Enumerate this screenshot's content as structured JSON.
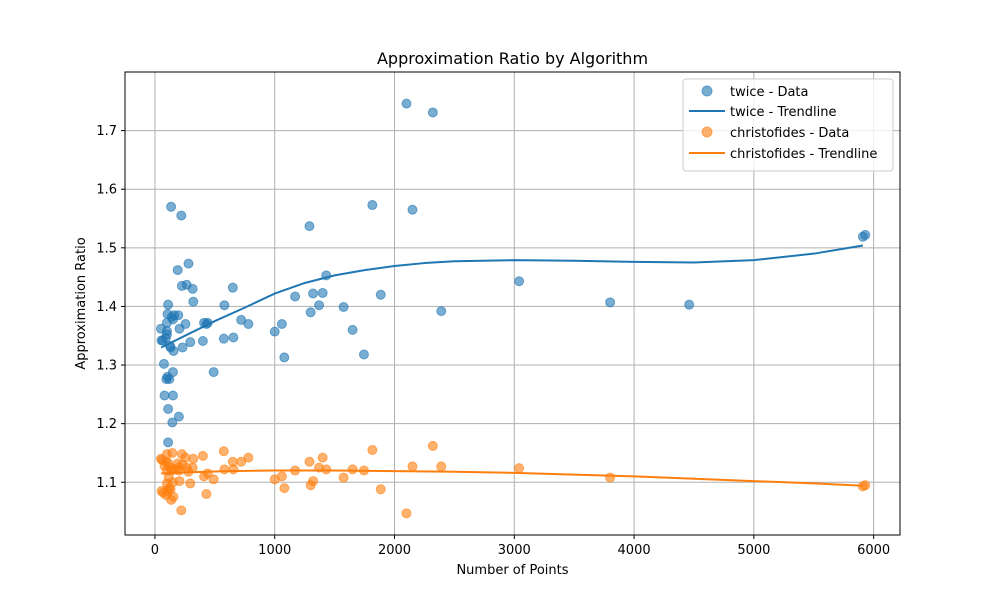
{
  "chart_data": {
    "type": "scatter",
    "title": "Approximation Ratio by Algorithm",
    "xlabel": "Number of Points",
    "ylabel": "Approximation Ratio",
    "xlim": [
      -250,
      6220
    ],
    "ylim": [
      1.01,
      1.8
    ],
    "xticks": [
      0,
      1000,
      2000,
      3000,
      4000,
      5000,
      6000
    ],
    "yticks": [
      1.1,
      1.2,
      1.3,
      1.4,
      1.5,
      1.6,
      1.7
    ],
    "grid": true,
    "legend_position": "top-right",
    "series": [
      {
        "name": "twice - Data",
        "kind": "scatter",
        "color": "#1f77b4",
        "points": [
          [
            50,
            1.362
          ],
          [
            55,
            1.342
          ],
          [
            65,
            1.342
          ],
          [
            75,
            1.302
          ],
          [
            80,
            1.248
          ],
          [
            90,
            1.346
          ],
          [
            95,
            1.276
          ],
          [
            100,
            1.372
          ],
          [
            100,
            1.358
          ],
          [
            100,
            1.352
          ],
          [
            105,
            1.28
          ],
          [
            105,
            1.387
          ],
          [
            110,
            1.403
          ],
          [
            110,
            1.225
          ],
          [
            110,
            1.168
          ],
          [
            120,
            1.276
          ],
          [
            125,
            1.333
          ],
          [
            130,
            1.33
          ],
          [
            135,
            1.57
          ],
          [
            140,
            1.382
          ],
          [
            145,
            1.202
          ],
          [
            150,
            1.378
          ],
          [
            150,
            1.288
          ],
          [
            150,
            1.248
          ],
          [
            155,
            1.324
          ],
          [
            160,
            1.385
          ],
          [
            190,
            1.462
          ],
          [
            195,
            1.385
          ],
          [
            200,
            1.212
          ],
          [
            205,
            1.362
          ],
          [
            220,
            1.555
          ],
          [
            225,
            1.435
          ],
          [
            230,
            1.33
          ],
          [
            255,
            1.37
          ],
          [
            265,
            1.437
          ],
          [
            280,
            1.473
          ],
          [
            295,
            1.339
          ],
          [
            315,
            1.43
          ],
          [
            320,
            1.408
          ],
          [
            400,
            1.341
          ],
          [
            410,
            1.372
          ],
          [
            430,
            1.37
          ],
          [
            440,
            1.372
          ],
          [
            490,
            1.288
          ],
          [
            575,
            1.345
          ],
          [
            580,
            1.402
          ],
          [
            650,
            1.432
          ],
          [
            655,
            1.347
          ],
          [
            720,
            1.377
          ],
          [
            780,
            1.37
          ],
          [
            1000,
            1.357
          ],
          [
            1060,
            1.37
          ],
          [
            1080,
            1.313
          ],
          [
            1170,
            1.417
          ],
          [
            1290,
            1.537
          ],
          [
            1300,
            1.39
          ],
          [
            1320,
            1.422
          ],
          [
            1370,
            1.402
          ],
          [
            1400,
            1.423
          ],
          [
            1430,
            1.453
          ],
          [
            1575,
            1.399
          ],
          [
            1650,
            1.36
          ],
          [
            1745,
            1.318
          ],
          [
            1815,
            1.573
          ],
          [
            1885,
            1.42
          ],
          [
            2100,
            1.746
          ],
          [
            2150,
            1.565
          ],
          [
            2320,
            1.731
          ],
          [
            2390,
            1.392
          ],
          [
            3040,
            1.443
          ],
          [
            3800,
            1.407
          ],
          [
            4460,
            1.403
          ],
          [
            5910,
            1.519
          ],
          [
            5930,
            1.522
          ]
        ]
      },
      {
        "name": "twice - Trendline",
        "kind": "line",
        "color": "#1f77b4",
        "points": [
          [
            52,
            1.33
          ],
          [
            300,
            1.355
          ],
          [
            500,
            1.375
          ],
          [
            750,
            1.398
          ],
          [
            1000,
            1.422
          ],
          [
            1250,
            1.44
          ],
          [
            1500,
            1.453
          ],
          [
            1750,
            1.462
          ],
          [
            2000,
            1.469
          ],
          [
            2250,
            1.474
          ],
          [
            2500,
            1.477
          ],
          [
            3000,
            1.479
          ],
          [
            3500,
            1.478
          ],
          [
            4000,
            1.476
          ],
          [
            4500,
            1.475
          ],
          [
            5000,
            1.479
          ],
          [
            5500,
            1.49
          ],
          [
            5910,
            1.504
          ]
        ]
      },
      {
        "name": "christofides - Data",
        "kind": "scatter",
        "color": "#ff7f0e",
        "points": [
          [
            50,
            1.14
          ],
          [
            55,
            1.085
          ],
          [
            60,
            1.138
          ],
          [
            70,
            1.082
          ],
          [
            80,
            1.128
          ],
          [
            90,
            1.135
          ],
          [
            95,
            1.078
          ],
          [
            100,
            1.12
          ],
          [
            100,
            1.098
          ],
          [
            100,
            1.148
          ],
          [
            105,
            1.085
          ],
          [
            110,
            1.133
          ],
          [
            115,
            1.108
          ],
          [
            120,
            1.09
          ],
          [
            125,
            1.125
          ],
          [
            130,
            1.088
          ],
          [
            135,
            1.07
          ],
          [
            140,
            1.12
          ],
          [
            145,
            1.15
          ],
          [
            150,
            1.1
          ],
          [
            155,
            1.075
          ],
          [
            160,
            1.122
          ],
          [
            190,
            1.132
          ],
          [
            195,
            1.125
          ],
          [
            200,
            1.12
          ],
          [
            205,
            1.102
          ],
          [
            220,
            1.052
          ],
          [
            225,
            1.148
          ],
          [
            230,
            1.13
          ],
          [
            255,
            1.142
          ],
          [
            265,
            1.125
          ],
          [
            280,
            1.118
          ],
          [
            295,
            1.098
          ],
          [
            315,
            1.125
          ],
          [
            320,
            1.14
          ],
          [
            400,
            1.145
          ],
          [
            410,
            1.11
          ],
          [
            430,
            1.08
          ],
          [
            440,
            1.115
          ],
          [
            490,
            1.105
          ],
          [
            575,
            1.153
          ],
          [
            580,
            1.122
          ],
          [
            650,
            1.135
          ],
          [
            655,
            1.122
          ],
          [
            720,
            1.135
          ],
          [
            780,
            1.142
          ],
          [
            1000,
            1.105
          ],
          [
            1060,
            1.11
          ],
          [
            1080,
            1.09
          ],
          [
            1170,
            1.12
          ],
          [
            1290,
            1.135
          ],
          [
            1300,
            1.095
          ],
          [
            1320,
            1.102
          ],
          [
            1370,
            1.125
          ],
          [
            1400,
            1.142
          ],
          [
            1430,
            1.122
          ],
          [
            1575,
            1.108
          ],
          [
            1650,
            1.122
          ],
          [
            1745,
            1.12
          ],
          [
            1815,
            1.155
          ],
          [
            1885,
            1.088
          ],
          [
            2100,
            1.047
          ],
          [
            2150,
            1.127
          ],
          [
            2320,
            1.162
          ],
          [
            2390,
            1.127
          ],
          [
            3040,
            1.124
          ],
          [
            3800,
            1.108
          ],
          [
            5910,
            1.093
          ],
          [
            5930,
            1.095
          ]
        ]
      },
      {
        "name": "christofides - Trendline",
        "kind": "line",
        "color": "#ff7f0e",
        "points": [
          [
            52,
            1.115
          ],
          [
            300,
            1.117
          ],
          [
            600,
            1.119
          ],
          [
            1000,
            1.12
          ],
          [
            1500,
            1.12
          ],
          [
            2000,
            1.119
          ],
          [
            2500,
            1.118
          ],
          [
            3000,
            1.116
          ],
          [
            3500,
            1.113
          ],
          [
            4000,
            1.11
          ],
          [
            4500,
            1.106
          ],
          [
            5000,
            1.102
          ],
          [
            5500,
            1.098
          ],
          [
            5910,
            1.094
          ]
        ]
      }
    ]
  }
}
